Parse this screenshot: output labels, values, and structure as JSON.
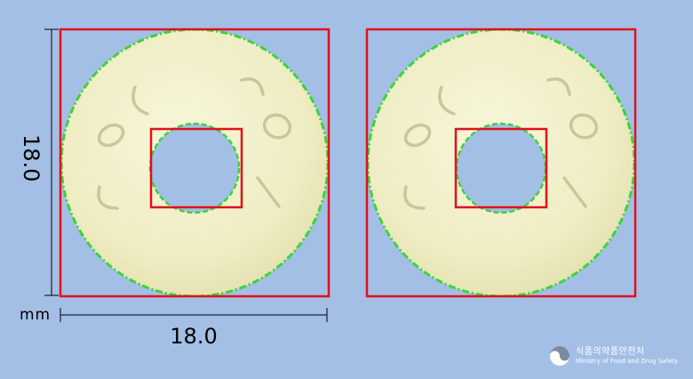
{
  "measurements": {
    "height_label": "18.0",
    "width_label": "18.0",
    "unit": "mm"
  },
  "pill": {
    "imprint_text": "COL COL",
    "body_color": "#f1f0c8",
    "outline_color": "#3ad43a",
    "box_color": "#e0111a"
  },
  "logo": {
    "icon": "mfds-emblem-icon",
    "name_ko": "식품의약품안전처",
    "name_en": "Ministry of Food and Drug Safety"
  }
}
